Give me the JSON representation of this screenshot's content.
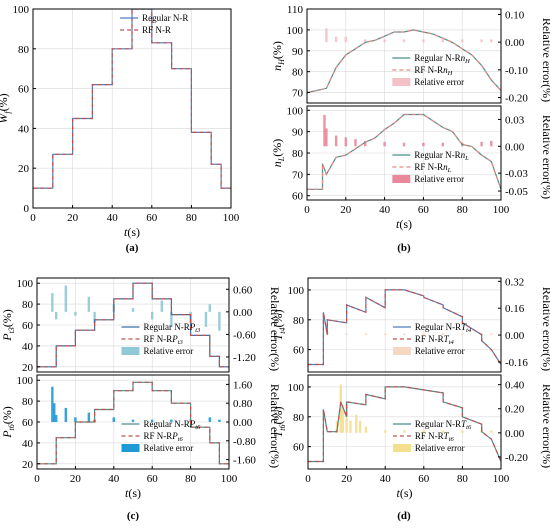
{
  "chart_data": [
    {
      "panel": "(a)",
      "type": "line",
      "xlabel_pre": "",
      "xlabel_it": "t",
      "xlabel_post": "(s)",
      "ylabel_pre": "",
      "ylabel_it": "W",
      "ylabel_sub": "f",
      "ylabel_post": "(%)",
      "xlim": [
        0,
        100
      ],
      "ylim": [
        0,
        100
      ],
      "xticks": [
        0,
        20,
        40,
        60,
        80,
        100
      ],
      "yticks": [
        0,
        20,
        40,
        60,
        80,
        100
      ],
      "x": [
        0,
        5,
        5,
        10,
        10,
        20,
        20,
        30,
        30,
        40,
        40,
        50,
        50,
        60,
        60,
        70,
        70,
        80,
        80,
        90,
        90,
        95,
        95,
        100
      ],
      "series": [
        {
          "name": "Regular N-R",
          "style": "solid",
          "color": "#4f7fbf",
          "values": [
            10,
            10,
            10,
            10,
            27,
            27,
            45,
            45,
            62,
            62,
            80,
            80,
            100,
            100,
            83,
            83,
            70,
            70,
            38,
            38,
            22,
            22,
            10,
            10
          ]
        },
        {
          "name": "RF N-R",
          "style": "dashed",
          "color": "#c0504d",
          "values": [
            10,
            10,
            10,
            10,
            27,
            27,
            45,
            45,
            62,
            62,
            80,
            80,
            100,
            100,
            83,
            83,
            70,
            70,
            38,
            38,
            22,
            22,
            10,
            10
          ]
        }
      ]
    },
    {
      "panel": "(b) top",
      "type": "line",
      "ylabel_pre": "",
      "ylabel_it": "n",
      "ylabel_sub": "H",
      "ylabel_post": "(%)",
      "y2label": "Relative error(%)",
      "xlim": [
        0,
        100
      ],
      "ylim": [
        65,
        110
      ],
      "y2lim": [
        -0.22,
        0.12
      ],
      "yticks": [
        70,
        80,
        90,
        100,
        110
      ],
      "y2ticks": [
        "0.10",
        "0.00",
        "-0.10",
        "-0.20"
      ],
      "y2tick_values": [
        0.1,
        0.0,
        -0.1,
        -0.2
      ],
      "x": [
        0,
        5,
        10,
        15,
        20,
        25,
        30,
        35,
        40,
        45,
        50,
        55,
        60,
        65,
        70,
        75,
        80,
        85,
        90,
        95,
        100
      ],
      "series": [
        {
          "name": "Regular N-Rn_H",
          "style": "solid",
          "color": "#4a8f8c",
          "values": [
            70,
            71,
            72,
            82,
            88,
            91,
            94,
            95,
            97,
            99,
            99,
            100,
            99,
            98,
            96,
            94,
            91,
            88,
            83,
            76,
            71
          ]
        },
        {
          "name": "RF N-Rn_H",
          "style": "dashed",
          "color": "#e08a82",
          "values": [
            70,
            71,
            72,
            82,
            88,
            91,
            94,
            95,
            97,
            99,
            99,
            100,
            99,
            98,
            96,
            94,
            91,
            88,
            83,
            76,
            71
          ]
        }
      ],
      "error": {
        "name": "Relative error",
        "color": "#f4c1c8",
        "x": [
          10,
          15,
          20,
          30,
          40,
          50,
          60,
          70,
          80,
          90,
          95
        ],
        "values": [
          0.05,
          0.02,
          0.02,
          0.01,
          0.01,
          0.01,
          0.01,
          0.01,
          0.01,
          0.01,
          0.01
        ]
      }
    },
    {
      "panel": "(b) bottom",
      "type": "line",
      "xlabel_pre": "",
      "xlabel_it": "t",
      "xlabel_post": "(s)",
      "ylabel_pre": "",
      "ylabel_it": "n",
      "ylabel_sub": "L",
      "ylabel_post": "(%)",
      "y2label": "Relative error(%)",
      "xlim": [
        0,
        100
      ],
      "ylim": [
        58,
        102
      ],
      "y2lim": [
        -0.06,
        0.045
      ],
      "xticks": [
        0,
        20,
        40,
        60,
        80,
        100
      ],
      "yticks": [
        60,
        70,
        80,
        90,
        100
      ],
      "y2ticks": [
        "0.03",
        "0.00",
        "-0.03",
        "-0.05"
      ],
      "y2tick_values": [
        0.03,
        0.0,
        -0.03,
        -0.05
      ],
      "x": [
        0,
        5,
        8,
        8,
        10,
        15,
        20,
        25,
        30,
        35,
        40,
        45,
        50,
        55,
        60,
        65,
        70,
        75,
        80,
        85,
        90,
        95,
        100
      ],
      "series": [
        {
          "name": "Regular N-Rn_L",
          "style": "solid",
          "color": "#4a8f8c",
          "values": [
            63,
            63,
            63,
            75,
            70,
            78,
            79,
            82,
            85,
            87,
            91,
            94,
            98,
            98,
            98,
            95,
            92,
            90,
            84,
            83,
            79,
            76,
            63
          ]
        },
        {
          "name": "RF N-Rn_L",
          "style": "dashed",
          "color": "#e08a82",
          "values": [
            63,
            63,
            63,
            75,
            70,
            78,
            79,
            82,
            85,
            87,
            91,
            94,
            98,
            98,
            98,
            95,
            92,
            90,
            84,
            83,
            79,
            76,
            63
          ]
        }
      ],
      "error": {
        "name": "Relative error",
        "color": "#e8889a",
        "x": [
          9,
          10,
          15,
          20,
          25,
          30,
          40,
          50,
          60,
          70,
          80,
          90,
          95
        ],
        "values": [
          0.035,
          0.02,
          0.012,
          0.01,
          0.008,
          0.006,
          0.005,
          0.004,
          0.004,
          0.004,
          0.004,
          0.005,
          0.006
        ]
      }
    },
    {
      "panel": "(c) top",
      "type": "line",
      "ylabel_pre": "",
      "ylabel_it": "P",
      "ylabel_sub": "t3",
      "ylabel_post": "(%)",
      "y2label": "Relative error(%)",
      "xlim": [
        0,
        100
      ],
      "ylim": [
        15,
        105
      ],
      "y2lim": [
        -1.6,
        0.9
      ],
      "yticks": [
        20,
        40,
        60,
        80,
        100
      ],
      "y2ticks": [
        "0.60",
        "0.00",
        "-0.60",
        "-1.20"
      ],
      "y2tick_values": [
        0.6,
        0.0,
        -0.6,
        -1.2
      ],
      "x": [
        0,
        5,
        5,
        10,
        10,
        20,
        20,
        30,
        30,
        40,
        40,
        50,
        50,
        60,
        60,
        70,
        70,
        80,
        80,
        90,
        90,
        95,
        95,
        100
      ],
      "series": [
        {
          "name": "Regular N-RP_t3",
          "style": "solid",
          "color": "#3a6fa8",
          "values": [
            20,
            20,
            20,
            20,
            40,
            40,
            55,
            55,
            65,
            65,
            85,
            85,
            100,
            100,
            85,
            85,
            70,
            70,
            50,
            50,
            30,
            30,
            20,
            20
          ]
        },
        {
          "name": "RF N-RP_t3",
          "style": "dashed",
          "color": "#c0504d",
          "values": [
            20,
            20,
            20,
            20,
            40,
            40,
            55,
            55,
            65,
            65,
            85,
            85,
            100,
            100,
            85,
            85,
            70,
            70,
            50,
            50,
            30,
            30,
            20,
            20
          ]
        }
      ],
      "error": {
        "name": "Relative error",
        "color": "#8fc8d6",
        "x": [
          8,
          10,
          15,
          20,
          27,
          30,
          40,
          50,
          60,
          65,
          70,
          80,
          88,
          90,
          95
        ],
        "values": [
          0.5,
          -0.2,
          0.7,
          -0.1,
          0.4,
          -0.3,
          0.2,
          0.1,
          -0.2,
          0.3,
          -0.4,
          -0.3,
          -0.4,
          0.2,
          -0.5
        ]
      }
    },
    {
      "panel": "(c) bottom",
      "type": "line",
      "xlabel_pre": "",
      "xlabel_it": "t",
      "xlabel_post": "(s)",
      "ylabel_pre": "",
      "ylabel_it": "P",
      "ylabel_sub": "t6",
      "ylabel_post": "(%)",
      "y2label": "Relative error(%)",
      "xlim": [
        0,
        100
      ],
      "ylim": [
        15,
        105
      ],
      "y2lim": [
        -2.0,
        2.0
      ],
      "xticks": [
        0,
        20,
        40,
        60,
        80,
        100
      ],
      "yticks": [
        20,
        40,
        60,
        80,
        100
      ],
      "y2ticks": [
        "1.60",
        "0.80",
        "0.00",
        "-0.80",
        "-1.60"
      ],
      "y2tick_values": [
        1.6,
        0.8,
        0.0,
        -0.8,
        -1.6
      ],
      "x": [
        0,
        5,
        5,
        10,
        10,
        20,
        20,
        30,
        30,
        40,
        40,
        50,
        50,
        60,
        60,
        70,
        70,
        80,
        80,
        90,
        90,
        95,
        95,
        100
      ],
      "series": [
        {
          "name": "Regular N-RP_t6",
          "style": "solid",
          "color": "#4a8f8c",
          "values": [
            20,
            20,
            20,
            20,
            45,
            45,
            60,
            60,
            72,
            72,
            90,
            90,
            98,
            98,
            90,
            90,
            78,
            78,
            55,
            55,
            40,
            40,
            20,
            20
          ]
        },
        {
          "name": "RF N-RP_t6",
          "style": "dashed",
          "color": "#c0504d",
          "values": [
            20,
            20,
            20,
            20,
            45,
            45,
            60,
            60,
            72,
            72,
            90,
            90,
            98,
            98,
            90,
            90,
            78,
            78,
            55,
            55,
            40,
            40,
            20,
            20
          ]
        }
      ],
      "error": {
        "name": "Relative error",
        "color": "#1f9ad6",
        "x": [
          8,
          9,
          10,
          15,
          20,
          27,
          30,
          40,
          50,
          60,
          70,
          80,
          90,
          95
        ],
        "values": [
          1.5,
          0.8,
          0.3,
          0.6,
          0.2,
          0.4,
          0.1,
          0.2,
          0.1,
          0.1,
          0.1,
          0.1,
          0.2,
          0.1
        ]
      }
    },
    {
      "panel": "(d) top",
      "type": "line",
      "ylabel_pre": "",
      "ylabel_it": "T",
      "ylabel_sub": "t4",
      "ylabel_post": "(%)",
      "y2label": "Relative error(%)",
      "xlim": [
        0,
        100
      ],
      "ylim": [
        45,
        108
      ],
      "y2lim": [
        -0.22,
        0.34
      ],
      "yticks": [
        60,
        80,
        100
      ],
      "y2ticks": [
        "0.32",
        "0.16",
        "0.00",
        "-0.16"
      ],
      "y2tick_values": [
        0.32,
        0.16,
        0.0,
        -0.16
      ],
      "x": [
        0,
        5,
        8,
        8,
        10,
        10,
        20,
        20,
        30,
        30,
        40,
        40,
        50,
        50,
        60,
        60,
        70,
        70,
        80,
        80,
        90,
        90,
        95,
        100
      ],
      "series": [
        {
          "name": "Regular N-RT_t4",
          "style": "solid",
          "color": "#4f7fbf",
          "values": [
            50,
            50,
            50,
            85,
            70,
            80,
            78,
            90,
            85,
            95,
            88,
            100,
            100,
            100,
            96,
            95,
            90,
            88,
            82,
            78,
            70,
            66,
            60,
            50
          ]
        },
        {
          "name": "RF N-RT_t4",
          "style": "dashed",
          "color": "#c0504d",
          "values": [
            50,
            50,
            50,
            85,
            70,
            80,
            78,
            90,
            85,
            95,
            88,
            100,
            100,
            100,
            96,
            95,
            90,
            88,
            82,
            78,
            70,
            66,
            60,
            50
          ]
        }
      ],
      "error": {
        "name": "Relative error",
        "color": "#f6d8c2",
        "x": [
          10,
          20,
          30,
          40,
          50,
          60,
          70,
          80,
          90,
          95
        ],
        "values": [
          0.02,
          0.01,
          0.01,
          0.01,
          0.01,
          0.01,
          0.01,
          0.01,
          0.01,
          0.01
        ]
      }
    },
    {
      "panel": "(d) bottom",
      "type": "line",
      "xlabel_pre": "",
      "xlabel_it": "t",
      "xlabel_post": "(s)",
      "ylabel_pre": "",
      "ylabel_it": "T",
      "ylabel_sub": "t6",
      "ylabel_post": "(%)",
      "y2label": "Relative error(%)",
      "xlim": [
        0,
        100
      ],
      "ylim": [
        45,
        108
      ],
      "y2lim": [
        -0.3,
        0.48
      ],
      "xticks": [
        0,
        20,
        40,
        60,
        80,
        100
      ],
      "yticks": [
        40,
        60,
        80,
        100
      ],
      "y2ticks": [
        "0.40",
        "0.20",
        "0.00",
        "-0.20"
      ],
      "y2tick_values": [
        0.4,
        0.2,
        0.0,
        -0.2
      ],
      "x": [
        0,
        5,
        8,
        8,
        10,
        15,
        17,
        20,
        20,
        30,
        30,
        40,
        40,
        50,
        60,
        70,
        70,
        80,
        80,
        90,
        90,
        95,
        100
      ],
      "series": [
        {
          "name": "Regular N-RT_t6",
          "style": "solid",
          "color": "#4a8f8c",
          "values": [
            50,
            50,
            50,
            85,
            70,
            70,
            90,
            80,
            90,
            88,
            95,
            92,
            100,
            100,
            98,
            96,
            90,
            86,
            80,
            75,
            70,
            65,
            50
          ]
        },
        {
          "name": "RF N-RT_t6",
          "style": "dashed",
          "color": "#c0504d",
          "values": [
            50,
            50,
            50,
            85,
            70,
            70,
            90,
            80,
            90,
            88,
            95,
            92,
            100,
            100,
            98,
            96,
            90,
            86,
            80,
            75,
            70,
            65,
            50
          ]
        }
      ],
      "error": {
        "name": "Relative error",
        "color": "#f3df8e",
        "x": [
          15,
          17,
          18,
          20,
          22,
          25,
          27,
          30,
          40,
          50,
          60,
          70,
          80,
          90,
          95
        ],
        "values": [
          0.1,
          0.4,
          0.2,
          0.25,
          0.1,
          0.15,
          0.1,
          0.05,
          0.02,
          0.02,
          0.02,
          0.02,
          0.02,
          0.02,
          0.02
        ]
      }
    }
  ],
  "captions": [
    "(a)",
    "(b)",
    "(c)",
    "(d)"
  ]
}
